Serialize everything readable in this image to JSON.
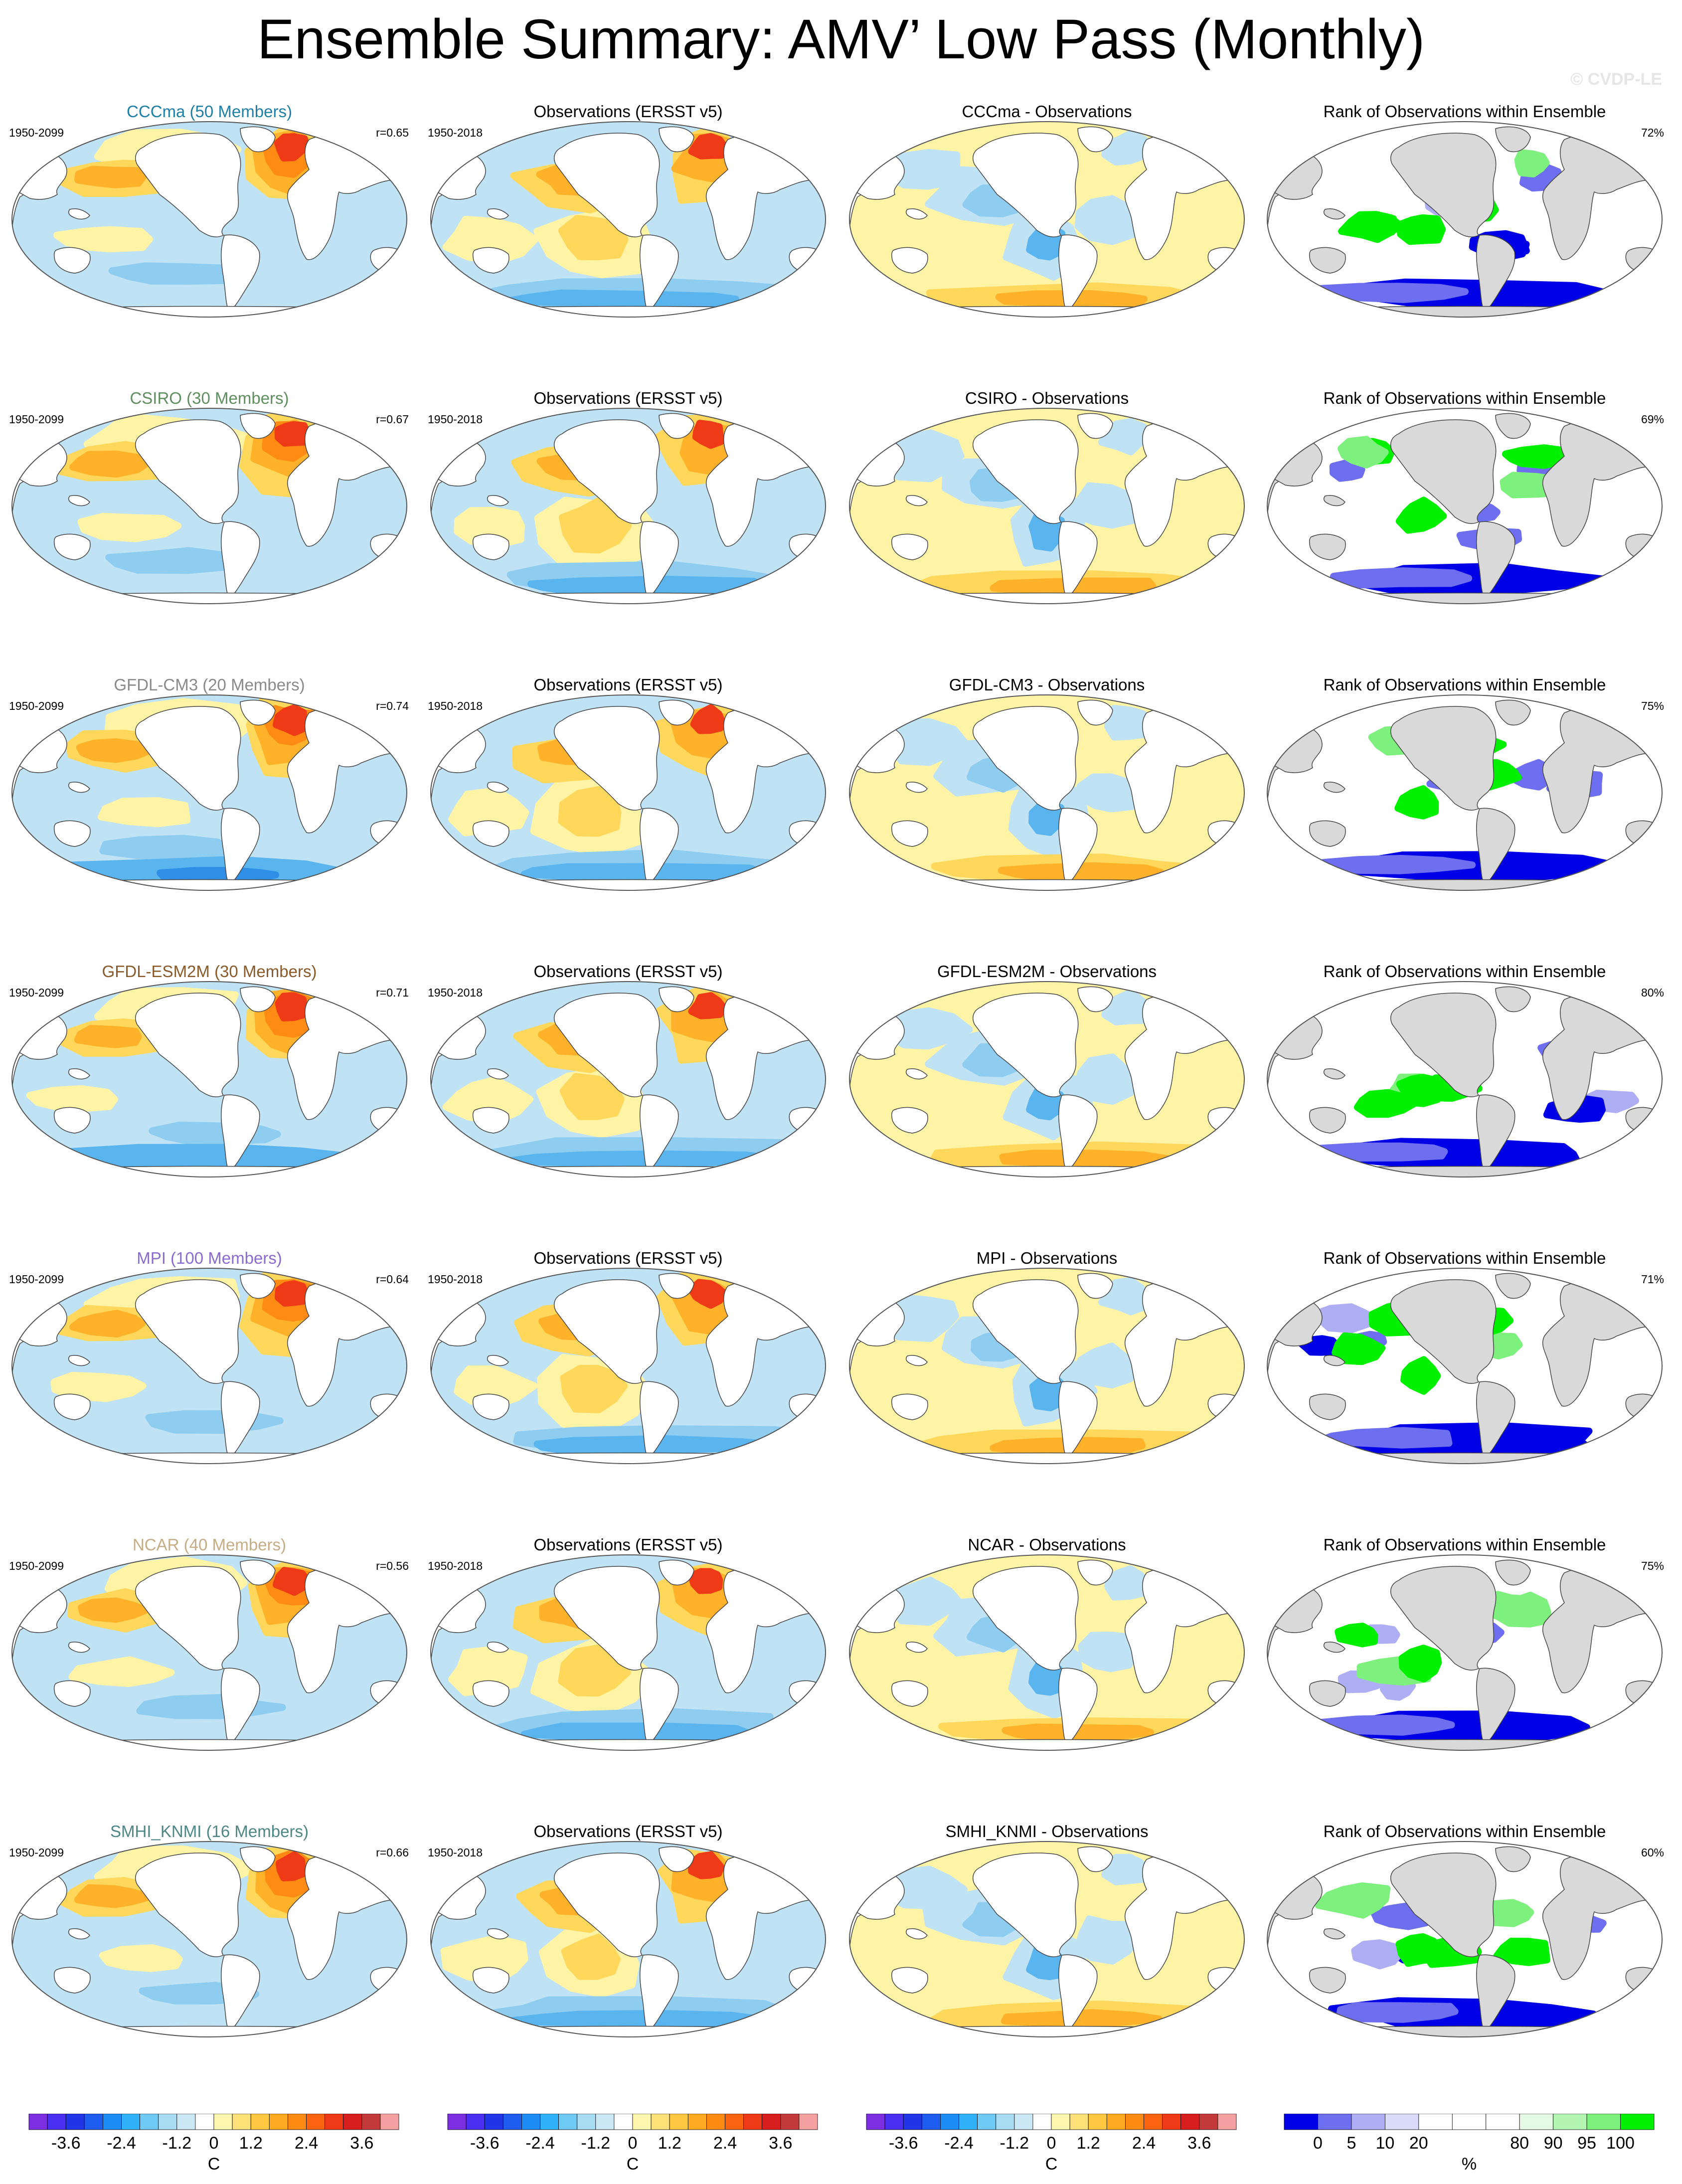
{
  "title": "Ensemble Summary: AMV’ Low Pass (Monthly)",
  "watermark": "© CVDP-LE",
  "colors": {
    "ensemble": [
      "#1f7fa7",
      "#5f8f5f",
      "#8a8a8a",
      "#8b5a2b",
      "#8a6bd0",
      "#c7ad86",
      "#4f8686"
    ],
    "rank_low": "#0000e6",
    "rank_high": "#00f000",
    "land": "#d9d9d9"
  },
  "rows": [
    {
      "ensemble_title": "CCCma (50 Members)",
      "ensemble_period": "1950-2099",
      "ensemble_r": "r=0.65",
      "obs_title": "Observations (ERSST v5)",
      "obs_period": "1950-2018",
      "diff_title": "CCCma - Observations",
      "rank_title": "Rank of Observations within Ensemble",
      "rank_pct": "72%"
    },
    {
      "ensemble_title": "CSIRO (30 Members)",
      "ensemble_period": "1950-2099",
      "ensemble_r": "r=0.67",
      "obs_title": "Observations (ERSST v5)",
      "obs_period": "1950-2018",
      "diff_title": "CSIRO - Observations",
      "rank_title": "Rank of Observations within Ensemble",
      "rank_pct": "69%"
    },
    {
      "ensemble_title": "GFDL-CM3 (20 Members)",
      "ensemble_period": "1950-2099",
      "ensemble_r": "r=0.74",
      "obs_title": "Observations (ERSST v5)",
      "obs_period": "1950-2018",
      "diff_title": "GFDL-CM3 - Observations",
      "rank_title": "Rank of Observations within Ensemble",
      "rank_pct": "75%"
    },
    {
      "ensemble_title": "GFDL-ESM2M (30 Members)",
      "ensemble_period": "1950-2099",
      "ensemble_r": "r=0.71",
      "obs_title": "Observations (ERSST v5)",
      "obs_period": "1950-2018",
      "diff_title": "GFDL-ESM2M - Observations",
      "rank_title": "Rank of Observations within Ensemble",
      "rank_pct": "80%"
    },
    {
      "ensemble_title": "MPI (100 Members)",
      "ensemble_period": "1950-2099",
      "ensemble_r": "r=0.64",
      "obs_title": "Observations (ERSST v5)",
      "obs_period": "1950-2018",
      "diff_title": "MPI - Observations",
      "rank_title": "Rank of Observations within Ensemble",
      "rank_pct": "71%"
    },
    {
      "ensemble_title": "NCAR (40 Members)",
      "ensemble_period": "1950-2099",
      "ensemble_r": "r=0.56",
      "obs_title": "Observations (ERSST v5)",
      "obs_period": "1950-2018",
      "diff_title": "NCAR - Observations",
      "rank_title": "Rank of Observations within Ensemble",
      "rank_pct": "75%"
    },
    {
      "ensemble_title": "SMHI_KNMI (16 Members)",
      "ensemble_period": "1950-2099",
      "ensemble_r": "r=0.66",
      "obs_title": "Observations (ERSST v5)",
      "obs_period": "1950-2018",
      "diff_title": "SMHI_KNMI - Observations",
      "rank_title": "Rank of Observations within Ensemble",
      "rank_pct": "60%"
    }
  ],
  "colorbars": {
    "sst": {
      "colors": [
        "#7b2fe0",
        "#4b2ff0",
        "#1f35e6",
        "#1f5cf0",
        "#1e8cf5",
        "#2fb0f7",
        "#6fcaf5",
        "#a7dcf2",
        "#cbe7f4",
        "#ffffff",
        "#fff7b0",
        "#ffe17a",
        "#ffc742",
        "#ffaa20",
        "#ff8a10",
        "#fd6410",
        "#ee3a16",
        "#d61e1e",
        "#c23a3a",
        "#f5a0a0"
      ],
      "labels": [
        "-3.6",
        "-2.4",
        "-1.2",
        "0",
        "1.2",
        "2.4",
        "3.6"
      ],
      "unit": "C"
    },
    "rank": {
      "colors": [
        "#0000e6",
        "#6e6ef0",
        "#aeaef5",
        "#dadafa",
        "#ffffff",
        "#ffffff",
        "#ffffff",
        "#e4fae4",
        "#b4f5b4",
        "#7ef07e",
        "#00f000"
      ],
      "labels": [
        "0",
        "5",
        "10",
        "20",
        "80",
        "90",
        "95",
        "100"
      ],
      "unit": "%"
    }
  }
}
